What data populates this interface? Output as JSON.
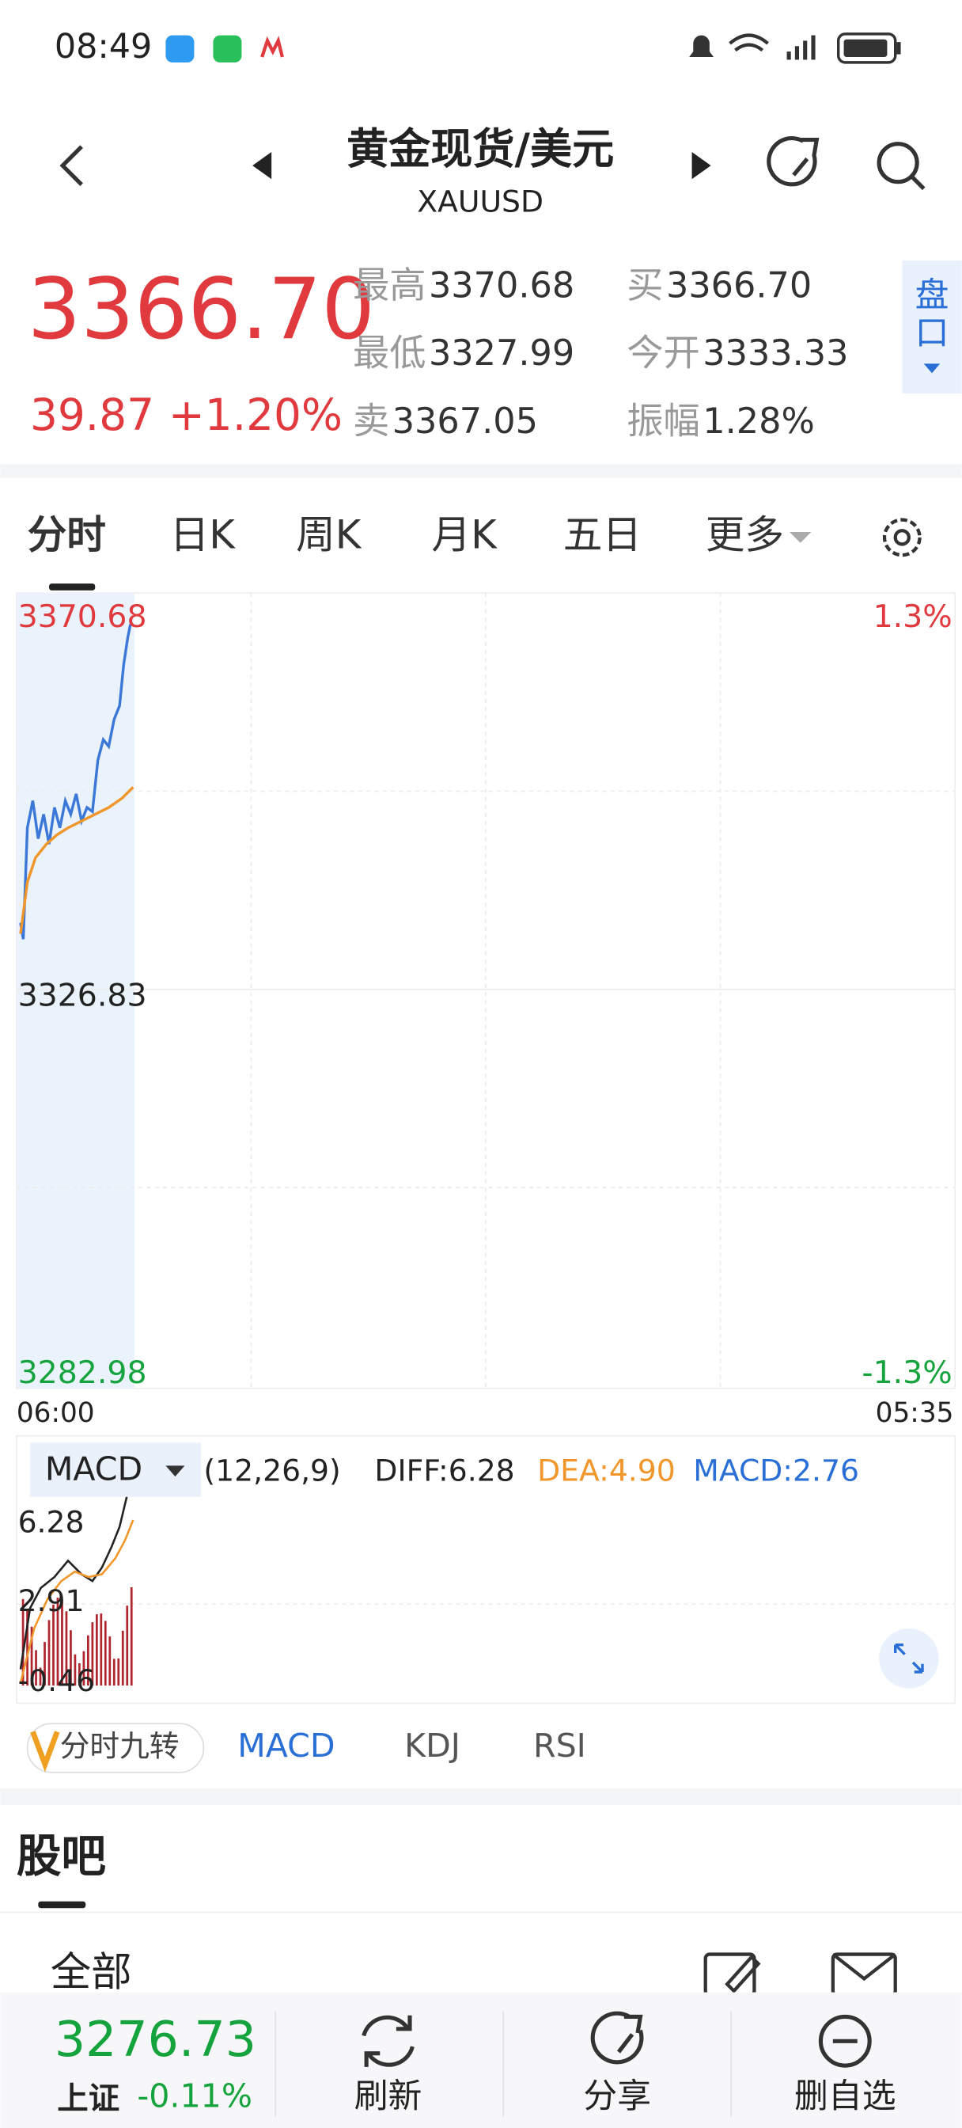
{
  "status_bar": {
    "time": "08:49"
  },
  "header": {
    "title": "黄金现货/美元",
    "subtitle": "XAUUSD"
  },
  "quote": {
    "price": "3366.70",
    "change": "39.87",
    "change_pct": "+1.20%",
    "stats": [
      {
        "label": "最高",
        "value": "3370.68"
      },
      {
        "label": "买",
        "value": "3366.70"
      },
      {
        "label": "最低",
        "value": "3327.99"
      },
      {
        "label": "今开",
        "value": "3333.33"
      },
      {
        "label": "卖",
        "value": "3367.05"
      },
      {
        "label": "振幅",
        "value": "1.28%"
      }
    ],
    "side_button": [
      "盘",
      "口"
    ]
  },
  "tabs": [
    "分时",
    "日K",
    "周K",
    "月K",
    "五日",
    "更多"
  ],
  "intraday": {
    "price_labels": [
      "3370.68",
      "3326.83",
      "3282.98"
    ],
    "pct_labels": [
      "1.3%",
      "-1.3%"
    ],
    "time_labels": [
      "06:00",
      "05:35"
    ]
  },
  "macd": {
    "name": "MACD",
    "params": "(12,26,9)",
    "diff": "DIFF:6.28",
    "dea": "DEA:4.90",
    "macd": "MACD:2.76",
    "axis_labels": [
      "6.28",
      "2.91",
      "-0.46"
    ]
  },
  "indicator_tabs": {
    "special": "分时九转",
    "tabs": [
      "MACD",
      "KDJ",
      "RSI"
    ]
  },
  "forum": {
    "title": "股吧",
    "filter": "全部"
  },
  "bottom_bar": {
    "index_value": "3276.73",
    "index_name": "上证",
    "index_change": "-0.11%",
    "actions": [
      "刷新",
      "分享",
      "删自选"
    ]
  }
}
